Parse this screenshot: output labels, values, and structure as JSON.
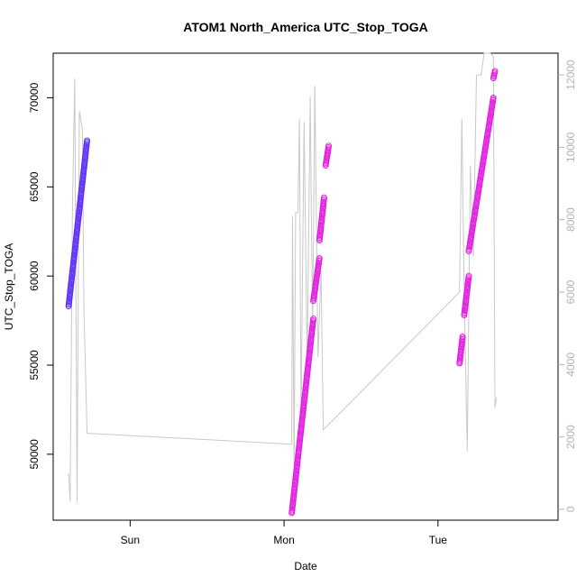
{
  "chart_data": {
    "type": "scatter",
    "title": "ATOM1 North_America UTC_Stop_TOGA",
    "xlabel": "Date",
    "ylabel": "UTC_Stop_TOGA",
    "x_ticks": [
      "Sun",
      "Mon",
      "Tue"
    ],
    "y_left": {
      "ticks": [
        "50000",
        "55000",
        "60000",
        "65000",
        "70000"
      ],
      "tick_values": [
        50000,
        55000,
        60000,
        65000,
        70000
      ],
      "ylim": [
        46300,
        72500
      ]
    },
    "y_right": {
      "ticks": [
        "0",
        "2000",
        "4000",
        "6000",
        "8000",
        "10000",
        "12000"
      ],
      "tick_values": [
        0,
        2000,
        4000,
        6000,
        8000,
        10000,
        12000
      ],
      "ylim": [
        -300,
        12600
      ],
      "color": "#b3b3b3"
    },
    "xlim": [
      0,
      3.28
    ],
    "x_tick_positions": [
      0.5,
      1.5,
      2.5
    ],
    "grid": false,
    "legend": "none",
    "series": [
      {
        "kind": "points",
        "axis": "left",
        "color": "#5d2ff7",
        "segments": [
          {
            "x0": 0.1,
            "x1": 0.22,
            "y0": 58300,
            "y1": 67600
          }
        ]
      },
      {
        "kind": "points",
        "axis": "left",
        "color": "#e11ee0",
        "segments": [
          {
            "x0": 1.55,
            "x1": 1.69,
            "y0": 46700,
            "y1": 57600
          },
          {
            "x0": 1.69,
            "x1": 1.73,
            "y0": 58600,
            "y1": 61000
          },
          {
            "x0": 1.73,
            "x1": 1.76,
            "y0": 62000,
            "y1": 64400
          },
          {
            "x0": 1.77,
            "x1": 1.79,
            "y0": 66200,
            "y1": 67300
          },
          {
            "x0": 2.64,
            "x1": 2.66,
            "y0": 55100,
            "y1": 56600
          },
          {
            "x0": 2.67,
            "x1": 2.7,
            "y0": 57800,
            "y1": 60000
          },
          {
            "x0": 2.7,
            "x1": 2.86,
            "y0": 61400,
            "y1": 70000
          },
          {
            "x0": 2.86,
            "x1": 2.87,
            "y0": 71100,
            "y1": 71500
          }
        ]
      },
      {
        "kind": "line",
        "axis": "right",
        "color": "#c8c8c8",
        "points": [
          [
            0.1,
            1000
          ],
          [
            0.11,
            200
          ],
          [
            0.125,
            8200
          ],
          [
            0.14,
            11900
          ],
          [
            0.155,
            200
          ],
          [
            0.17,
            11000
          ],
          [
            0.19,
            10500
          ],
          [
            0.2,
            5500
          ],
          [
            0.22,
            2100
          ],
          [
            1.55,
            1800
          ],
          [
            1.555,
            8100
          ],
          [
            1.565,
            1000
          ],
          [
            1.575,
            8200
          ],
          [
            1.59,
            8200
          ],
          [
            1.6,
            10800
          ],
          [
            1.61,
            2500
          ],
          [
            1.63,
            10700
          ],
          [
            1.65,
            4000
          ],
          [
            1.67,
            11400
          ],
          [
            1.685,
            4800
          ],
          [
            1.7,
            11700
          ],
          [
            1.72,
            4200
          ],
          [
            1.74,
            6600
          ],
          [
            1.755,
            2200
          ],
          [
            1.78,
            2300
          ],
          [
            2.64,
            6000
          ],
          [
            2.655,
            10800
          ],
          [
            2.67,
            6000
          ],
          [
            2.69,
            1600
          ],
          [
            2.71,
            9500
          ],
          [
            2.73,
            7000
          ],
          [
            2.75,
            12000
          ],
          [
            2.78,
            12000
          ],
          [
            2.8,
            12600
          ],
          [
            2.84,
            12600
          ],
          [
            2.86,
            12500
          ],
          [
            2.87,
            2800
          ],
          [
            2.88,
            3100
          ]
        ]
      }
    ]
  }
}
